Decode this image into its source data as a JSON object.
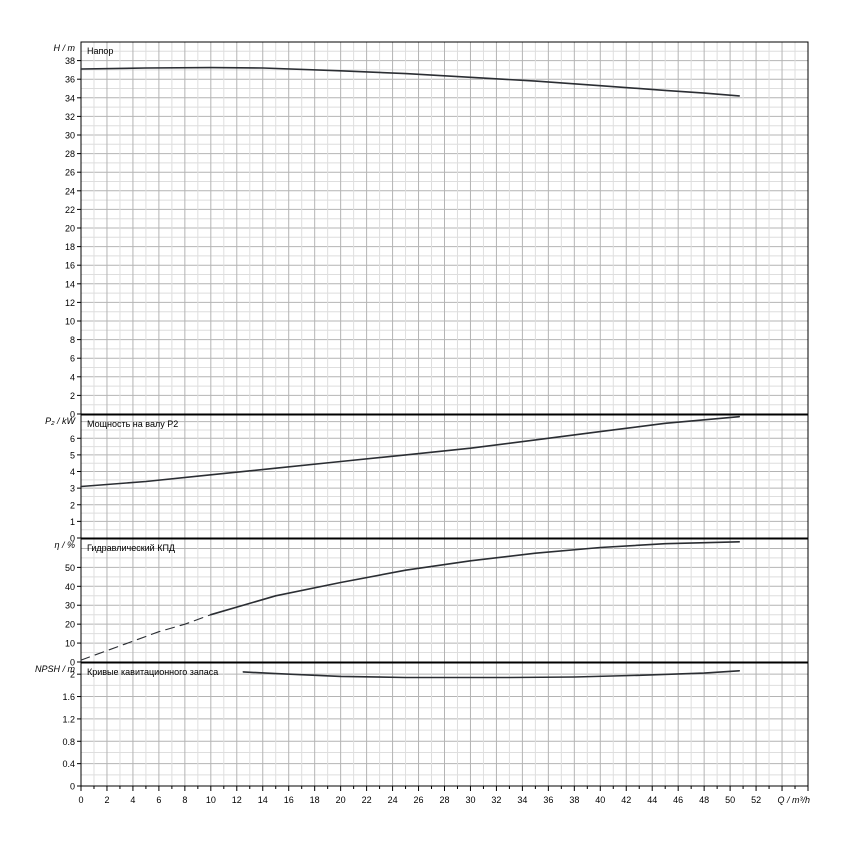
{
  "chart_data": [
    {
      "type": "line",
      "title": "Напор",
      "ylabel": "H / m",
      "ylim": [
        0,
        40
      ],
      "yticks": [
        0,
        2,
        4,
        6,
        8,
        10,
        12,
        14,
        16,
        18,
        20,
        22,
        24,
        26,
        28,
        30,
        32,
        34,
        36,
        38
      ],
      "series": [
        {
          "dashed": false,
          "x": [
            0,
            5,
            10,
            14,
            20,
            25,
            30,
            35,
            40,
            45,
            48,
            50.7
          ],
          "y": [
            37.1,
            37.2,
            37.25,
            37.2,
            36.9,
            36.6,
            36.2,
            35.8,
            35.3,
            34.8,
            34.5,
            34.2
          ]
        }
      ]
    },
    {
      "type": "line",
      "title": "Мощность на валу P2",
      "ylabel": "P₂ / kW",
      "ylim": [
        0,
        7.4
      ],
      "yticks": [
        0,
        1,
        2,
        3,
        4,
        5,
        6
      ],
      "series": [
        {
          "dashed": false,
          "x": [
            0,
            5,
            10,
            15,
            20,
            25,
            30,
            35,
            40,
            45,
            50.7
          ],
          "y": [
            3.1,
            3.4,
            3.8,
            4.2,
            4.6,
            5.0,
            5.4,
            5.9,
            6.4,
            6.9,
            7.3
          ]
        }
      ]
    },
    {
      "type": "line",
      "title": "Гидравлический КПД",
      "ylabel": "η / %",
      "ylim": [
        0,
        65
      ],
      "yticks": [
        0,
        10,
        20,
        30,
        40,
        50
      ],
      "series": [
        {
          "dashed": true,
          "x": [
            0,
            2,
            4,
            6,
            8,
            10
          ],
          "y": [
            1,
            6,
            11,
            16,
            20,
            25
          ]
        },
        {
          "dashed": false,
          "x": [
            10,
            15,
            20,
            25,
            30,
            35,
            40,
            45,
            50.7
          ],
          "y": [
            25,
            35,
            42,
            48.5,
            53.5,
            57.5,
            60.5,
            62.5,
            63.5
          ]
        }
      ]
    },
    {
      "type": "line",
      "title": "Кривые кавитационного запаса",
      "ylabel": "NPSH / m",
      "ylim": [
        0,
        2.2
      ],
      "yticks": [
        0,
        0.4,
        0.8,
        1.2,
        1.6,
        2
      ],
      "ytick_labels": [
        "0",
        "0.4",
        "0.8",
        "1.2",
        "1.6",
        "2"
      ],
      "series": [
        {
          "dashed": false,
          "x": [
            12.5,
            15,
            20,
            25,
            30,
            33,
            38,
            43,
            48,
            50.7
          ],
          "y": [
            2.04,
            2.01,
            1.96,
            1.94,
            1.94,
            1.94,
            1.95,
            1.98,
            2.02,
            2.06
          ]
        }
      ]
    }
  ],
  "x_axis": {
    "xlim": [
      0,
      56
    ],
    "xticks": [
      0,
      2,
      4,
      6,
      8,
      10,
      12,
      14,
      16,
      18,
      20,
      22,
      24,
      26,
      28,
      30,
      32,
      34,
      36,
      38,
      40,
      42,
      44,
      46,
      48,
      50,
      52
    ],
    "xlabel": "Q / m³/h"
  },
  "style": {
    "curve_color": "#2b2e33",
    "grid_major_color": "#b4b4b4",
    "grid_minor_color": "#dedede",
    "axis_color": "#000000"
  }
}
